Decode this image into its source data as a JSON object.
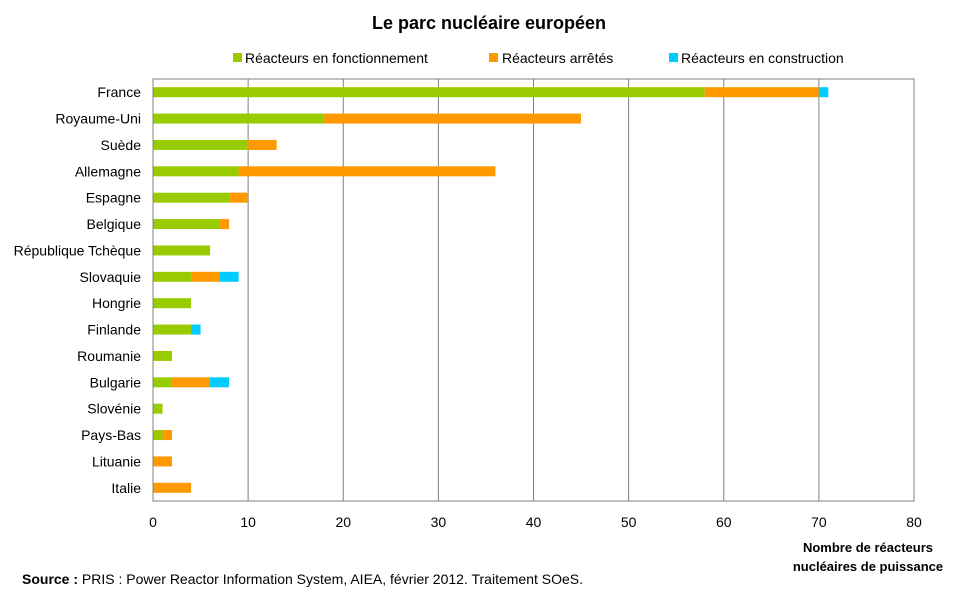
{
  "chart_data": {
    "type": "bar",
    "orientation": "horizontal",
    "stacked": true,
    "title": "Le parc nucléaire européen",
    "xlabel_lines": [
      "Nombre de réacteurs",
      "nucléaires de puissance"
    ],
    "xlim": [
      0,
      80
    ],
    "xticks": [
      0,
      10,
      20,
      30,
      40,
      50,
      60,
      70,
      80
    ],
    "grid": true,
    "legend_position": "top",
    "categories": [
      "France",
      "Royaume-Uni",
      "Suède",
      "Allemagne",
      "Espagne",
      "Belgique",
      "République Tchèque",
      "Slovaquie",
      "Hongrie",
      "Finlande",
      "Roumanie",
      "Bulgarie",
      "Slovénie",
      "Pays-Bas",
      "Lituanie",
      "Italie"
    ],
    "series": [
      {
        "name": "Réacteurs en fonctionnement",
        "color": "#99cc00",
        "values": [
          58,
          18,
          10,
          9,
          8,
          7,
          6,
          4,
          4,
          4,
          2,
          2,
          1,
          1,
          0,
          0
        ]
      },
      {
        "name": "Réacteurs arrêtés",
        "color": "#ff9900",
        "values": [
          12,
          27,
          3,
          27,
          2,
          1,
          0,
          3,
          0,
          0,
          0,
          4,
          0,
          1,
          2,
          4
        ]
      },
      {
        "name": "Réacteurs en construction",
        "color": "#00ccff",
        "values": [
          1,
          0,
          0,
          0,
          0,
          0,
          0,
          2,
          0,
          1,
          0,
          2,
          0,
          0,
          0,
          0
        ]
      }
    ]
  },
  "source": {
    "label": "Source :",
    "text": " PRIS : Power Reactor Information System, AIEA, février 2012. Traitement SOeS."
  }
}
